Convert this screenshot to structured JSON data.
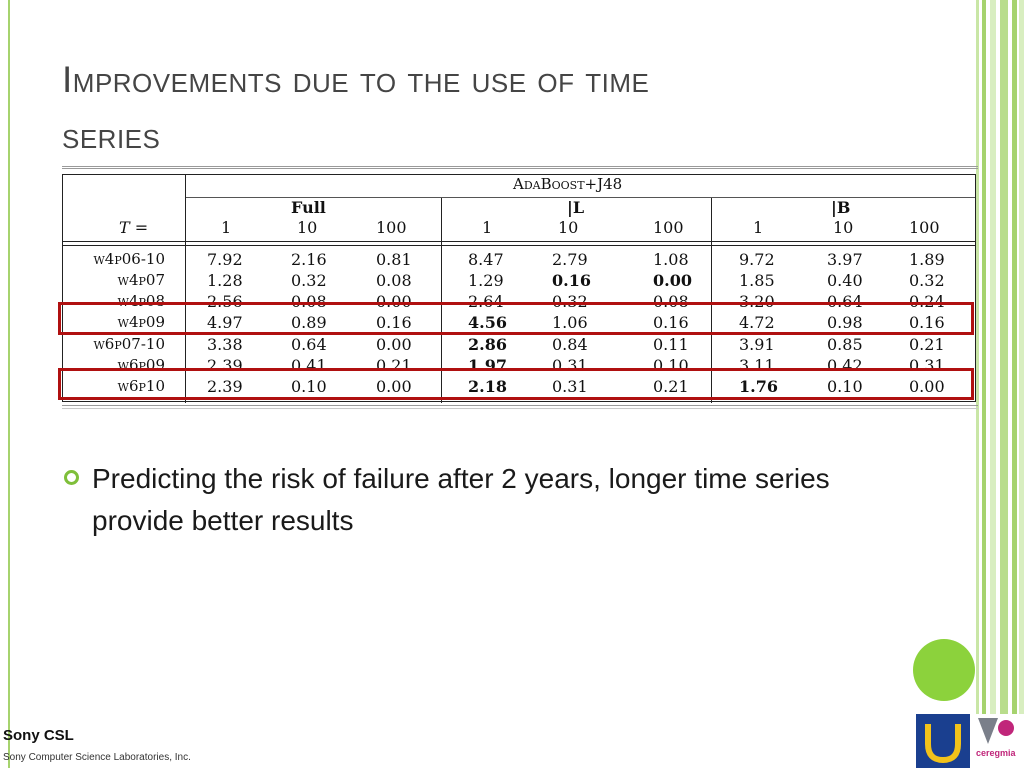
{
  "slide": {
    "title_line1": "Improvements due to the use of time",
    "title_line2": "series",
    "bullet": "Predicting the risk of failure after 2 years, longer time series provide better results"
  },
  "footer": {
    "brand": "Sony CSL",
    "brand_sub": "Sony Computer Science Laboratories, Inc.",
    "logo_right_text": "ceregmia"
  },
  "table": {
    "super_header": "AdaBoost+J48",
    "groups": [
      "Full",
      "|L",
      "|B"
    ],
    "t_label": "T =",
    "t_values": [
      "1",
      "10",
      "100",
      "1",
      "10",
      "100",
      "1",
      "10",
      "100"
    ],
    "rows": [
      {
        "label": "w4p06-10",
        "values": [
          "7.92",
          "2.16",
          "0.81",
          "8.47",
          "2.79",
          "1.08",
          "9.72",
          "3.97",
          "1.89"
        ]
      },
      {
        "label": "w4p07",
        "values": [
          "1.28",
          "0.32",
          "0.08",
          "1.29",
          "0.16",
          "0.00",
          "1.85",
          "0.40",
          "0.32"
        ]
      },
      {
        "label": "w4p08",
        "values": [
          "2.56",
          "0.08",
          "0.00",
          "2.64",
          "0.32",
          "0.08",
          "3.20",
          "0.64",
          "0.24"
        ]
      },
      {
        "label": "w4p09",
        "values": [
          "4.97",
          "0.89",
          "0.16",
          "4.56",
          "1.06",
          "0.16",
          "4.72",
          "0.98",
          "0.16"
        ]
      },
      {
        "label": "w6p07-10",
        "values": [
          "3.38",
          "0.64",
          "0.00",
          "2.86",
          "0.84",
          "0.11",
          "3.91",
          "0.85",
          "0.21"
        ]
      },
      {
        "label": "w6p09",
        "values": [
          "2.39",
          "0.41",
          "0.21",
          "1.97",
          "0.31",
          "0.10",
          "3.11",
          "0.42",
          "0.31"
        ]
      },
      {
        "label": "w6p10",
        "values": [
          "2.39",
          "0.10",
          "0.00",
          "2.18",
          "0.31",
          "0.21",
          "1.76",
          "0.10",
          "0.00"
        ]
      }
    ],
    "bold_cells": [
      [
        1,
        4
      ],
      [
        1,
        5
      ],
      [
        3,
        3
      ],
      [
        4,
        3
      ],
      [
        5,
        3
      ],
      [
        6,
        3
      ],
      [
        6,
        6
      ]
    ],
    "highlighted_rows": [
      3,
      6
    ]
  },
  "colors": {
    "accent_green": "#8cd23c",
    "highlight_red": "#b01010",
    "logo_blue": "#1a3f8f"
  }
}
